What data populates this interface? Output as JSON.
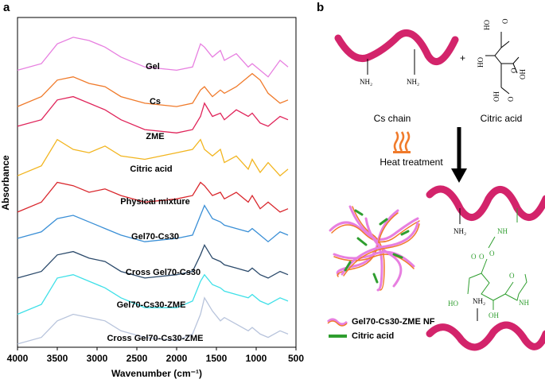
{
  "chart_data": {
    "type": "line",
    "xlabel": "Wavenumber (cm⁻¹)",
    "ylabel": "Absorbance",
    "xlim": [
      4000,
      500
    ],
    "xticks": [
      4000,
      3500,
      3000,
      2500,
      2000,
      1500,
      1000,
      500
    ],
    "ylim": [
      0,
      100
    ],
    "x": [
      4000,
      3700,
      3500,
      3300,
      3100,
      2900,
      2700,
      2400,
      2000,
      1800,
      1700,
      1650,
      1550,
      1450,
      1400,
      1250,
      1100,
      1050,
      950,
      850,
      700,
      600
    ],
    "series": [
      {
        "name": "Gel",
        "color": "#e77fe0",
        "values": [
          84,
          86,
          92,
          94,
          93,
          91,
          88,
          85,
          84,
          85,
          92,
          91,
          88,
          90,
          87,
          89,
          85,
          86,
          84,
          82,
          87,
          85
        ]
      },
      {
        "name": "Cs",
        "color": "#f07a2a",
        "values": [
          73,
          76,
          81,
          82,
          80,
          79,
          76,
          74,
          73,
          74,
          78,
          79,
          76,
          78,
          77,
          79,
          82,
          83,
          81,
          77,
          74,
          75
        ]
      },
      {
        "name": "ZME",
        "color": "#e0245a",
        "values": [
          67,
          69,
          75,
          76,
          74,
          72,
          69,
          66,
          65,
          66,
          70,
          74,
          70,
          71,
          69,
          72,
          70,
          71,
          68,
          67,
          70,
          69
        ]
      },
      {
        "name": "Citric acid",
        "color": "#f2b51f",
        "values": [
          52,
          55,
          63,
          60,
          59,
          61,
          58,
          57,
          59,
          60,
          63,
          60,
          58,
          60,
          56,
          58,
          54,
          57,
          53,
          56,
          52,
          54
        ]
      },
      {
        "name": "Physical mixture",
        "color": "#d9262c",
        "values": [
          41,
          44,
          50,
          49,
          47,
          48,
          46,
          44,
          45,
          46,
          50,
          49,
          46,
          47,
          45,
          47,
          44,
          46,
          42,
          44,
          41,
          42
        ]
      },
      {
        "name": "Gel70-Cs30",
        "color": "#3a8fd6",
        "values": [
          33,
          35,
          39,
          40,
          38,
          36,
          34,
          32,
          33,
          34,
          40,
          43,
          39,
          38,
          37,
          36,
          35,
          36,
          34,
          32,
          35,
          34
        ]
      },
      {
        "name": "Cross Gel70-Cs30",
        "color": "#2b4a6b",
        "values": [
          21,
          23,
          28,
          29,
          27,
          26,
          23,
          21,
          22,
          23,
          28,
          31,
          27,
          26,
          25,
          24,
          23,
          24,
          22,
          21,
          23,
          22
        ]
      },
      {
        "name": "Gel70-Cs30-ZME",
        "color": "#3fe0e8",
        "values": [
          10,
          13,
          21,
          22,
          20,
          18,
          15,
          12,
          12,
          14,
          20,
          22,
          19,
          18,
          17,
          16,
          15,
          16,
          14,
          13,
          15,
          14
        ]
      },
      {
        "name": "Cross Gel70-Cs30-ZME",
        "color": "#b8c4dc",
        "values": [
          1,
          3,
          8,
          10,
          9,
          8,
          5,
          3,
          2,
          4,
          10,
          15,
          11,
          8,
          9,
          7,
          5,
          6,
          4,
          3,
          5,
          4
        ]
      }
    ]
  },
  "panel_labels": [
    "a",
    "b"
  ],
  "schematic": {
    "plus": "+",
    "cs_chain": "Cs chain",
    "citric_acid": "Citric acid",
    "heat": "Heat treatment",
    "legend": [
      "Gel70-Cs30-ZME NF",
      "Citric acid"
    ],
    "atoms": [
      "NH₂",
      "NH₂",
      "HO",
      "O",
      "HO",
      "O",
      "OH",
      "OH",
      "O",
      "NH₂",
      "NH",
      "O",
      "O",
      "O",
      "HO",
      "OH",
      "O",
      "NH",
      "NH₂"
    ]
  }
}
